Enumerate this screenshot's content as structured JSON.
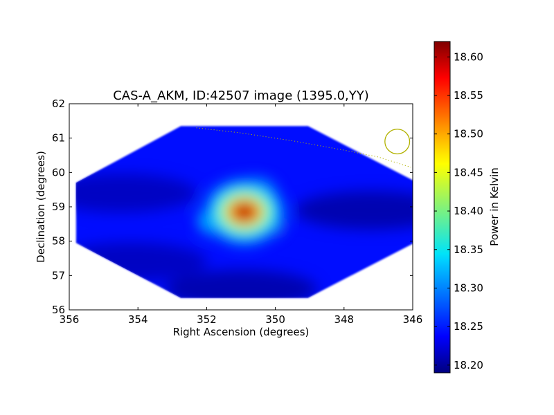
{
  "chart_data": {
    "type": "heatmap",
    "title": "CAS-A_AKM, ID:42507 image (1395.0,YY)",
    "xlabel": "Right Ascension (degrees)",
    "ylabel": "Declination (degrees)",
    "xlim": [
      356,
      346
    ],
    "ylim": [
      56,
      62
    ],
    "x_ticks": [
      356,
      354,
      352,
      350,
      348,
      346
    ],
    "y_ticks": [
      56,
      57,
      58,
      59,
      60,
      61,
      62
    ],
    "x_tick_labels": [
      "356",
      "354",
      "352",
      "350",
      "348",
      "346"
    ],
    "y_tick_labels": [
      "56",
      "57",
      "58",
      "59",
      "60",
      "61",
      "62"
    ],
    "colorbar": {
      "label": "Power in Kelvin",
      "colormap": "jet",
      "range": [
        18.19,
        18.62
      ],
      "ticks": [
        18.2,
        18.25,
        18.3,
        18.35,
        18.4,
        18.45,
        18.5,
        18.55,
        18.6
      ],
      "tick_labels": [
        "18.20",
        "18.25",
        "18.30",
        "18.35",
        "18.40",
        "18.45",
        "18.50",
        "18.55",
        "18.60"
      ]
    },
    "coverage_polygon": [
      [
        352.75,
        61.35
      ],
      [
        349.05,
        61.35
      ],
      [
        345.95,
        59.75
      ],
      [
        345.95,
        57.95
      ],
      [
        349.05,
        56.35
      ],
      [
        352.75,
        56.35
      ],
      [
        355.8,
        57.95
      ],
      [
        355.8,
        59.7
      ]
    ],
    "background_level": 18.25,
    "sources": [
      {
        "ra": 350.9,
        "dec": 58.85,
        "peak": 18.62,
        "name": "CAS-A"
      }
    ],
    "regions": [
      {
        "ra": 351.3,
        "dec": 59.2,
        "level": 18.36
      },
      {
        "ra": 350.4,
        "dec": 58.55,
        "level": 18.38
      },
      {
        "ra": 351.6,
        "dec": 58.6,
        "level": 18.33
      },
      {
        "ra": 350.6,
        "dec": 59.4,
        "level": 18.31
      }
    ],
    "dark_regions": [
      {
        "ra": 351.0,
        "dec": 56.6,
        "level": 18.2
      },
      {
        "ra": 347.2,
        "dec": 58.9,
        "level": 18.2
      },
      {
        "ra": 354.5,
        "dec": 59.4,
        "level": 18.21
      },
      {
        "ra": 354.2,
        "dec": 57.4,
        "level": 18.21
      }
    ],
    "dotted_path": [
      [
        352.3,
        61.3
      ],
      [
        351.0,
        61.15
      ],
      [
        349.5,
        60.92
      ],
      [
        348.0,
        60.65
      ],
      [
        347.0,
        60.45
      ],
      [
        346.05,
        60.15
      ]
    ],
    "beam_marker": {
      "ra": 346.45,
      "dec": 60.9,
      "radius_deg": 0.36
    },
    "colors": {
      "overlay": "#b2b200",
      "axes": "#000000"
    }
  }
}
